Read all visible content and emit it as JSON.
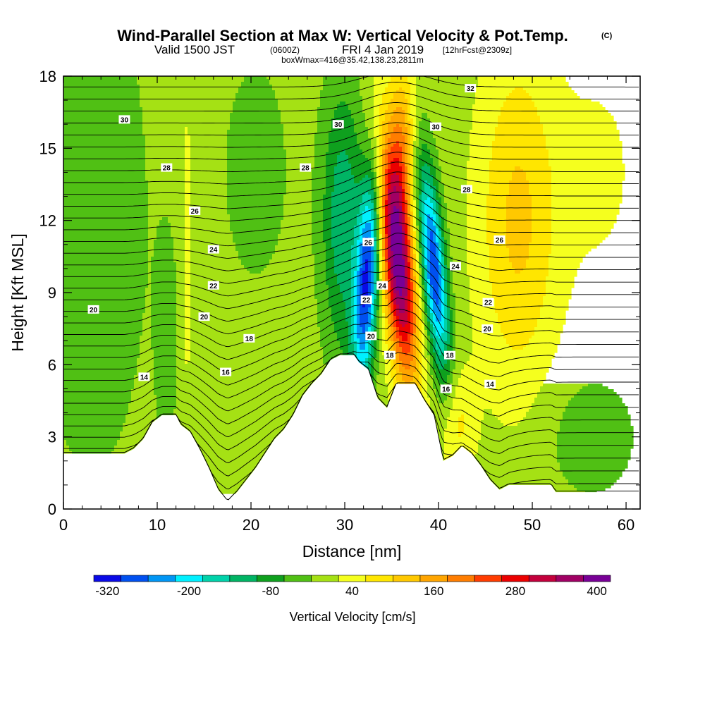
{
  "title": {
    "main": "Wind-Parallel Section at Max W: Vertical Velocity & Pot.Temp.",
    "copyright": "(C)",
    "valid_prefix": "Valid 1500 JST",
    "valid_z": "(0600Z)",
    "valid_date": "FRI 4 Jan 2019",
    "valid_fcst": "[12hrFcst@2309z]",
    "box_info": "boxWmax=416@35.42,138.23,2811m"
  },
  "chart_data": {
    "type": "heatmap",
    "xlabel": "Distance [nm]",
    "ylabel": "Height [Kft MSL]",
    "xlim": [
      0,
      61.5
    ],
    "ylim": [
      0,
      18
    ],
    "x_ticks": [
      "0",
      "10",
      "20",
      "30",
      "40",
      "50",
      "60"
    ],
    "x_tick_values": [
      0,
      10,
      20,
      30,
      40,
      50,
      60
    ],
    "y_ticks": [
      "0",
      "3",
      "6",
      "9",
      "12",
      "15",
      "18"
    ],
    "y_tick_values": [
      0,
      3,
      6,
      9,
      12,
      15,
      18
    ],
    "colorbar": {
      "label": "Vertical Velocity [cm/s]",
      "tick_labels": [
        "-320",
        "-200",
        "-80",
        "40",
        "160",
        "280",
        "400"
      ],
      "tick_values": [
        -320,
        -200,
        -80,
        40,
        160,
        280,
        400
      ],
      "bounds": [
        -340,
        -300,
        -260,
        -220,
        -180,
        -140,
        -100,
        -60,
        -20,
        20,
        60,
        100,
        140,
        180,
        220,
        260,
        300,
        340,
        380,
        420
      ],
      "colors": [
        "#0a0ae6",
        "#0050f0",
        "#0096f5",
        "#00f0ff",
        "#00d2aa",
        "#00b464",
        "#0fa01e",
        "#50c014",
        "#a5e114",
        "#f5ff1e",
        "#ffe600",
        "#ffc800",
        "#ffa500",
        "#ff7d00",
        "#ff3c00",
        "#eb0000",
        "#c3003c",
        "#a00064",
        "#780096"
      ]
    },
    "terrain_kft": [
      [
        0,
        2.3
      ],
      [
        6.5,
        2.3
      ],
      [
        7.5,
        2.5
      ],
      [
        8.5,
        2.9
      ],
      [
        9.5,
        3.6
      ],
      [
        10.5,
        3.9
      ],
      [
        12,
        3.9
      ],
      [
        12.5,
        3.5
      ],
      [
        13.5,
        3.2
      ],
      [
        14.5,
        2.5
      ],
      [
        15.5,
        1.7
      ],
      [
        16.5,
        0.8
      ],
      [
        17.5,
        0.3
      ],
      [
        18.5,
        0.7
      ],
      [
        19.5,
        1.2
      ],
      [
        20.5,
        1.7
      ],
      [
        21.5,
        2.3
      ],
      [
        22.5,
        2.9
      ],
      [
        23.5,
        3.3
      ],
      [
        24.5,
        3.9
      ],
      [
        25.5,
        4.7
      ],
      [
        26.5,
        5.2
      ],
      [
        27.5,
        5.6
      ],
      [
        28.5,
        6.2
      ],
      [
        29.5,
        6.4
      ],
      [
        31,
        6.4
      ],
      [
        31.5,
        6.1
      ],
      [
        32.5,
        5.8
      ],
      [
        33.5,
        4.6
      ],
      [
        34.5,
        4.2
      ],
      [
        35.5,
        5.2
      ],
      [
        37.5,
        5.2
      ],
      [
        38.5,
        4.5
      ],
      [
        39.5,
        3.9
      ],
      [
        40.5,
        2.0
      ],
      [
        41.5,
        2.2
      ],
      [
        42.5,
        2.6
      ],
      [
        43.5,
        2.3
      ],
      [
        44.5,
        1.8
      ],
      [
        45.5,
        1.2
      ],
      [
        46.5,
        0.8
      ],
      [
        47.5,
        1.0
      ],
      [
        52,
        1.0
      ],
      [
        52.5,
        0.7
      ],
      [
        61.5,
        0.7
      ]
    ],
    "theta_isentropes": [
      14,
      16,
      18,
      20,
      22,
      24,
      26,
      28,
      30,
      32
    ],
    "contour_labels": [
      {
        "x": 8.6,
        "y": 5.5,
        "text": "14"
      },
      {
        "x": 17.3,
        "y": 5.7,
        "text": "16"
      },
      {
        "x": 19.8,
        "y": 7.1,
        "text": "18"
      },
      {
        "x": 15.0,
        "y": 8.0,
        "text": "20"
      },
      {
        "x": 16.0,
        "y": 9.3,
        "text": "22"
      },
      {
        "x": 16.0,
        "y": 10.8,
        "text": "24"
      },
      {
        "x": 14.0,
        "y": 12.4,
        "text": "26"
      },
      {
        "x": 11.0,
        "y": 14.2,
        "text": "28"
      },
      {
        "x": 6.5,
        "y": 16.2,
        "text": "30"
      },
      {
        "x": 3.2,
        "y": 8.3,
        "text": "20"
      },
      {
        "x": 25.8,
        "y": 14.2,
        "text": "28"
      },
      {
        "x": 29.3,
        "y": 16.0,
        "text": "30"
      },
      {
        "x": 32.5,
        "y": 11.1,
        "text": "26"
      },
      {
        "x": 34.0,
        "y": 9.3,
        "text": "24"
      },
      {
        "x": 32.3,
        "y": 8.7,
        "text": "22"
      },
      {
        "x": 32.8,
        "y": 7.2,
        "text": "20"
      },
      {
        "x": 34.8,
        "y": 6.4,
        "text": "18"
      },
      {
        "x": 39.7,
        "y": 15.9,
        "text": "30"
      },
      {
        "x": 43.4,
        "y": 17.5,
        "text": "32"
      },
      {
        "x": 43.0,
        "y": 13.3,
        "text": "28"
      },
      {
        "x": 46.5,
        "y": 11.2,
        "text": "26"
      },
      {
        "x": 41.8,
        "y": 10.1,
        "text": "24"
      },
      {
        "x": 45.3,
        "y": 8.6,
        "text": "22"
      },
      {
        "x": 45.2,
        "y": 7.5,
        "text": "20"
      },
      {
        "x": 41.2,
        "y": 6.4,
        "text": "18"
      },
      {
        "x": 40.8,
        "y": 5.0,
        "text": "16"
      },
      {
        "x": 45.5,
        "y": 5.2,
        "text": "14"
      }
    ]
  }
}
